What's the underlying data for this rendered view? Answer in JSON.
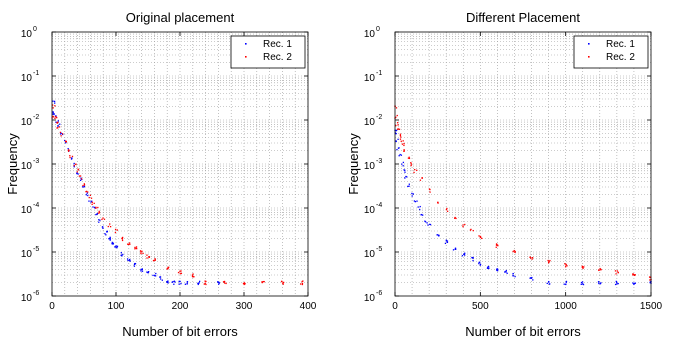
{
  "chart_data": [
    {
      "type": "scatter",
      "title": "Original placement",
      "xlabel": "Number of bit errors",
      "ylabel": "Frequency",
      "xlim": [
        0,
        400
      ],
      "ylim": [
        1e-06,
        1
      ],
      "yscale": "log",
      "grid": true,
      "legend_position": "top-right",
      "x_tick_labels": [
        "0",
        "100",
        "200",
        "300",
        "400"
      ],
      "y_tick_labels": [
        {
          "base": "10",
          "exp": "0"
        },
        {
          "base": "10",
          "exp": "-1"
        },
        {
          "base": "10",
          "exp": "-2"
        },
        {
          "base": "10",
          "exp": "-3"
        },
        {
          "base": "10",
          "exp": "-4"
        },
        {
          "base": "10",
          "exp": "-5"
        },
        {
          "base": "10",
          "exp": "-6"
        }
      ],
      "series": [
        {
          "name": "Rec. 1",
          "color": "#0000ff",
          "points": [
            [
              1,
              0.014
            ],
            [
              3,
              0.025
            ],
            [
              5,
              0.013
            ],
            [
              8,
              0.009
            ],
            [
              10,
              0.0075
            ],
            [
              15,
              0.005
            ],
            [
              20,
              0.0032
            ],
            [
              25,
              0.0021
            ],
            [
              30,
              0.0014
            ],
            [
              35,
              0.00095
            ],
            [
              40,
              0.00065
            ],
            [
              45,
              0.00045
            ],
            [
              50,
              0.0003
            ],
            [
              55,
              0.0002
            ],
            [
              60,
              0.00014
            ],
            [
              65,
              0.0001
            ],
            [
              70,
              7e-05
            ],
            [
              75,
              5e-05
            ],
            [
              80,
              3.5e-05
            ],
            [
              85,
              2.7e-05
            ],
            [
              90,
              2e-05
            ],
            [
              95,
              1.6e-05
            ],
            [
              100,
              1.3e-05
            ],
            [
              110,
              9e-06
            ],
            [
              120,
              6.5e-06
            ],
            [
              130,
              5e-06
            ],
            [
              140,
              4e-06
            ],
            [
              150,
              3.5e-06
            ],
            [
              160,
              3e-06
            ],
            [
              170,
              2.5e-06
            ],
            [
              180,
              2e-06
            ],
            [
              190,
              2e-06
            ],
            [
              200,
              2e-06
            ],
            [
              210,
              2e-06
            ],
            [
              230,
              2e-06
            ],
            [
              260,
              2e-06
            ]
          ]
        },
        {
          "name": "Rec. 2",
          "color": "#ff0000",
          "points": [
            [
              1,
              0.012
            ],
            [
              3,
              0.02
            ],
            [
              5,
              0.011
            ],
            [
              8,
              0.0085
            ],
            [
              10,
              0.007
            ],
            [
              15,
              0.0048
            ],
            [
              20,
              0.0031
            ],
            [
              25,
              0.0021
            ],
            [
              30,
              0.0015
            ],
            [
              35,
              0.001
            ],
            [
              40,
              0.0007
            ],
            [
              45,
              0.0005
            ],
            [
              50,
              0.00035
            ],
            [
              55,
              0.00025
            ],
            [
              60,
              0.00018
            ],
            [
              65,
              0.00013
            ],
            [
              70,
              0.0001
            ],
            [
              75,
              8e-05
            ],
            [
              80,
              6e-05
            ],
            [
              90,
              4e-05
            ],
            [
              100,
              3e-05
            ],
            [
              110,
              2e-05
            ],
            [
              120,
              1.5e-05
            ],
            [
              130,
              1.2e-05
            ],
            [
              140,
              1e-05
            ],
            [
              150,
              8e-06
            ],
            [
              160,
              6.5e-06
            ],
            [
              180,
              4.5e-06
            ],
            [
              200,
              3.5e-06
            ],
            [
              220,
              3e-06
            ],
            [
              240,
              2e-06
            ],
            [
              270,
              2e-06
            ],
            [
              300,
              2e-06
            ],
            [
              330,
              2e-06
            ],
            [
              360,
              2e-06
            ],
            [
              390,
              2e-06
            ]
          ]
        }
      ]
    },
    {
      "type": "scatter",
      "title": "Different Placement",
      "xlabel": "Number of bit errors",
      "ylabel": "Frequency",
      "xlim": [
        0,
        1500
      ],
      "ylim": [
        1e-06,
        1
      ],
      "yscale": "log",
      "grid": true,
      "legend_position": "top-right",
      "x_tick_labels": [
        "0",
        "500",
        "1000",
        "1500"
      ],
      "y_tick_labels": [
        {
          "base": "10",
          "exp": "0"
        },
        {
          "base": "10",
          "exp": "-1"
        },
        {
          "base": "10",
          "exp": "-2"
        },
        {
          "base": "10",
          "exp": "-3"
        },
        {
          "base": "10",
          "exp": "-4"
        },
        {
          "base": "10",
          "exp": "-5"
        },
        {
          "base": "10",
          "exp": "-6"
        }
      ],
      "series": [
        {
          "name": "Rec. 1",
          "color": "#0000ff",
          "points": [
            [
              2,
              0.006
            ],
            [
              5,
              0.005
            ],
            [
              10,
              0.0035
            ],
            [
              20,
              0.0022
            ],
            [
              30,
              0.0015
            ],
            [
              40,
              0.001
            ],
            [
              50,
              0.0007
            ],
            [
              60,
              0.0005
            ],
            [
              80,
              0.00032
            ],
            [
              100,
              0.0002
            ],
            [
              120,
              0.00014
            ],
            [
              140,
              0.0001
            ],
            [
              160,
              7e-05
            ],
            [
              180,
              5e-05
            ],
            [
              200,
              4e-05
            ],
            [
              250,
              2.5e-05
            ],
            [
              300,
              1.7e-05
            ],
            [
              350,
              1.2e-05
            ],
            [
              400,
              9e-06
            ],
            [
              450,
              7e-06
            ],
            [
              500,
              5.5e-06
            ],
            [
              550,
              4.5e-06
            ],
            [
              600,
              4e-06
            ],
            [
              650,
              3.5e-06
            ],
            [
              700,
              3e-06
            ],
            [
              800,
              2.5e-06
            ],
            [
              900,
              2e-06
            ],
            [
              1000,
              2e-06
            ],
            [
              1100,
              2e-06
            ],
            [
              1200,
              2e-06
            ],
            [
              1300,
              2e-06
            ],
            [
              1400,
              2e-06
            ],
            [
              1500,
              2e-06
            ]
          ]
        },
        {
          "name": "Rec. 2",
          "color": "#ff0000",
          "points": [
            [
              2,
              0.02
            ],
            [
              5,
              0.012
            ],
            [
              10,
              0.008
            ],
            [
              20,
              0.006
            ],
            [
              30,
              0.0045
            ],
            [
              40,
              0.0035
            ],
            [
              50,
              0.0027
            ],
            [
              60,
              0.0021
            ],
            [
              80,
              0.0014
            ],
            [
              100,
              0.001
            ],
            [
              120,
              0.0007
            ],
            [
              150,
              0.00045
            ],
            [
              200,
              0.00025
            ],
            [
              250,
              0.00014
            ],
            [
              300,
              9e-05
            ],
            [
              350,
              6e-05
            ],
            [
              400,
              4e-05
            ],
            [
              450,
              3e-05
            ],
            [
              500,
              2.2e-05
            ],
            [
              600,
              1.4e-05
            ],
            [
              700,
              1e-05
            ],
            [
              800,
              7.5e-06
            ],
            [
              900,
              6e-06
            ],
            [
              1000,
              5e-06
            ],
            [
              1100,
              4.5e-06
            ],
            [
              1200,
              4e-06
            ],
            [
              1300,
              3.5e-06
            ],
            [
              1400,
              3e-06
            ],
            [
              1500,
              2.5e-06
            ]
          ]
        }
      ]
    }
  ]
}
